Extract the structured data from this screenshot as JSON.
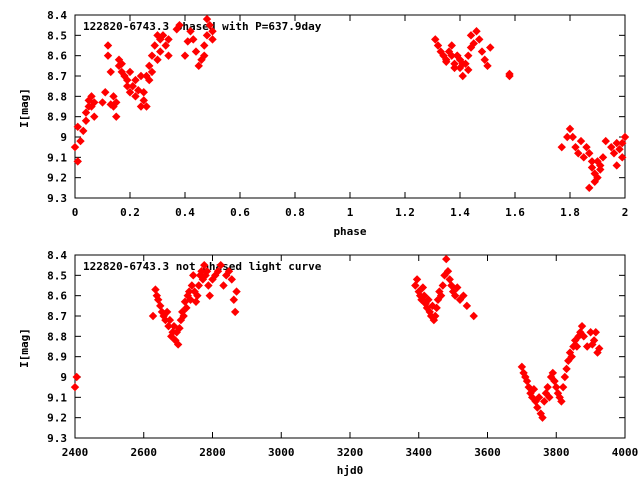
{
  "chart_data": [
    {
      "type": "scatter",
      "title": "122820-6743.3 phased with P=637.9day",
      "xlabel": "phase",
      "ylabel": "I[mag]",
      "xlim": [
        0,
        2
      ],
      "ylim": [
        9.3,
        8.4
      ],
      "y_inverted": true,
      "x_ticks": [
        "0",
        "0.2",
        "0.4",
        "0.6",
        "0.8",
        "1",
        "1.2",
        "1.4",
        "1.6",
        "1.8",
        "2"
      ],
      "y_ticks": [
        "8.4",
        "8.5",
        "8.6",
        "8.7",
        "8.8",
        "8.9",
        "9",
        "9.1",
        "9.2",
        "9.3"
      ],
      "grid": false,
      "marker_color": "#ff0000",
      "marker": "diamond",
      "series": [
        {
          "x": [
            0.0,
            0.01,
            0.02,
            0.01,
            0.03,
            0.04,
            0.04,
            0.05,
            0.05,
            0.06,
            0.06,
            0.07,
            0.07,
            0.1,
            0.11,
            0.12,
            0.12,
            0.13,
            0.13,
            0.14,
            0.14,
            0.15,
            0.15,
            0.16,
            0.16,
            0.17,
            0.17,
            0.18,
            0.19,
            0.19,
            0.2,
            0.2,
            0.21,
            0.22,
            0.22,
            0.23,
            0.24,
            0.24,
            0.25,
            0.25,
            0.26,
            0.26,
            0.27,
            0.27,
            0.28,
            0.28,
            0.29,
            0.3,
            0.3,
            0.31,
            0.31,
            0.32,
            0.33,
            0.34,
            0.34,
            0.37,
            0.38,
            0.4,
            0.41,
            0.42,
            0.43,
            0.44,
            0.45,
            0.46,
            0.47,
            0.48,
            0.49,
            0.5,
            0.48,
            0.5,
            0.47,
            1.31,
            1.32,
            1.33,
            1.34,
            1.35,
            1.36,
            1.37,
            1.38,
            1.38,
            1.39,
            1.4,
            1.4,
            1.41,
            1.42,
            1.43,
            1.44,
            1.44,
            1.45,
            1.46,
            1.47,
            1.48,
            1.49,
            1.5,
            1.51,
            1.35,
            1.37,
            1.39,
            1.41,
            1.43,
            1.58,
            1.58,
            1.77,
            1.79,
            1.8,
            1.81,
            1.82,
            1.83,
            1.84,
            1.85,
            1.86,
            1.87,
            1.88,
            1.88,
            1.89,
            1.9,
            1.9,
            1.91,
            1.92,
            1.93,
            1.95,
            1.96,
            1.97,
            1.98,
            1.99,
            2.0,
            1.87,
            1.89,
            1.91,
            1.97,
            1.99
          ],
          "y": [
            9.05,
            9.12,
            9.02,
            8.95,
            8.97,
            8.92,
            8.88,
            8.85,
            8.82,
            8.8,
            8.85,
            8.9,
            8.83,
            8.83,
            8.78,
            8.6,
            8.55,
            8.68,
            8.84,
            8.8,
            8.85,
            8.83,
            8.9,
            8.62,
            8.65,
            8.68,
            8.64,
            8.7,
            8.75,
            8.72,
            8.68,
            8.78,
            8.75,
            8.8,
            8.72,
            8.77,
            8.7,
            8.85,
            8.78,
            8.82,
            8.85,
            8.7,
            8.65,
            8.72,
            8.6,
            8.68,
            8.55,
            8.62,
            8.5,
            8.58,
            8.52,
            8.5,
            8.55,
            8.52,
            8.6,
            8.47,
            8.45,
            8.6,
            8.53,
            8.48,
            8.52,
            8.58,
            8.65,
            8.62,
            8.55,
            8.5,
            8.45,
            8.48,
            8.42,
            8.52,
            8.6,
            8.52,
            8.55,
            8.58,
            8.6,
            8.62,
            8.58,
            8.6,
            8.64,
            8.66,
            8.6,
            8.62,
            8.66,
            8.7,
            8.64,
            8.6,
            8.56,
            8.5,
            8.54,
            8.48,
            8.52,
            8.58,
            8.62,
            8.65,
            8.56,
            8.63,
            8.55,
            8.6,
            8.64,
            8.67,
            8.7,
            8.69,
            9.05,
            9.0,
            8.96,
            9.0,
            9.05,
            9.08,
            9.02,
            9.1,
            9.05,
            9.08,
            9.12,
            9.15,
            9.18,
            9.12,
            9.2,
            9.14,
            9.1,
            9.02,
            9.05,
            9.08,
            9.03,
            9.06,
            9.1,
            9.0,
            9.25,
            9.22,
            9.16,
            9.14,
            9.03
          ]
        }
      ]
    },
    {
      "type": "scatter",
      "title": "122820-6743.3 not phased light curve",
      "xlabel": "hjd0",
      "ylabel": "I[mag]",
      "xlim": [
        2400,
        4000
      ],
      "ylim": [
        9.3,
        8.4
      ],
      "y_inverted": true,
      "x_ticks": [
        "2400",
        "2600",
        "2800",
        "3000",
        "3200",
        "3400",
        "3600",
        "3800",
        "4000"
      ],
      "y_ticks": [
        "8.4",
        "8.5",
        "8.6",
        "8.7",
        "8.8",
        "8.9",
        "9",
        "9.1",
        "9.2",
        "9.3"
      ],
      "grid": false,
      "marker_color": "#ff0000",
      "marker": "diamond",
      "series": [
        {
          "x": [
            2400,
            2405,
            2627,
            2634,
            2638,
            2642,
            2648,
            2653,
            2658,
            2663,
            2668,
            2672,
            2676,
            2680,
            2684,
            2688,
            2692,
            2696,
            2700,
            2704,
            2708,
            2712,
            2716,
            2720,
            2724,
            2728,
            2732,
            2736,
            2740,
            2744,
            2748,
            2752,
            2756,
            2760,
            2764,
            2768,
            2772,
            2776,
            2780,
            2784,
            2788,
            2792,
            2800,
            2808,
            2816,
            2824,
            2832,
            2840,
            2848,
            2856,
            2862,
            2866,
            2870,
            3390,
            3395,
            3400,
            3404,
            3408,
            3412,
            3416,
            3420,
            3424,
            3428,
            3432,
            3436,
            3440,
            3444,
            3448,
            3452,
            3456,
            3460,
            3465,
            3470,
            3475,
            3480,
            3485,
            3490,
            3495,
            3500,
            3506,
            3512,
            3520,
            3530,
            3540,
            3560,
            3700,
            3705,
            3710,
            3715,
            3720,
            3725,
            3730,
            3735,
            3740,
            3745,
            3750,
            3755,
            3760,
            3765,
            3770,
            3775,
            3780,
            3785,
            3790,
            3795,
            3800,
            3805,
            3810,
            3815,
            3820,
            3825,
            3830,
            3835,
            3840,
            3845,
            3850,
            3855,
            3860,
            3865,
            3870,
            3875,
            3880,
            3890,
            3900,
            3905,
            3910,
            3915,
            3920,
            3925
          ],
          "y": [
            9.05,
            9.0,
            8.7,
            8.57,
            8.6,
            8.62,
            8.65,
            8.68,
            8.7,
            8.72,
            8.68,
            8.75,
            8.72,
            8.8,
            8.78,
            8.75,
            8.82,
            8.78,
            8.84,
            8.76,
            8.72,
            8.68,
            8.7,
            8.63,
            8.66,
            8.6,
            8.58,
            8.62,
            8.55,
            8.5,
            8.58,
            8.63,
            8.6,
            8.55,
            8.5,
            8.48,
            8.52,
            8.45,
            8.5,
            8.48,
            8.55,
            8.6,
            8.52,
            8.5,
            8.48,
            8.45,
            8.55,
            8.5,
            8.48,
            8.52,
            8.62,
            8.68,
            8.58,
            8.55,
            8.52,
            8.58,
            8.6,
            8.62,
            8.56,
            8.6,
            8.64,
            8.66,
            8.62,
            8.68,
            8.7,
            8.65,
            8.72,
            8.7,
            8.66,
            8.62,
            8.58,
            8.6,
            8.55,
            8.5,
            8.42,
            8.48,
            8.52,
            8.55,
            8.58,
            8.6,
            8.56,
            8.62,
            8.6,
            8.65,
            8.7,
            8.95,
            8.98,
            9.0,
            9.02,
            9.05,
            9.08,
            9.1,
            9.06,
            9.12,
            9.15,
            9.1,
            9.18,
            9.2,
            9.12,
            9.08,
            9.05,
            9.1,
            9.0,
            8.98,
            9.02,
            9.05,
            9.08,
            9.1,
            9.12,
            9.05,
            9.0,
            8.96,
            8.92,
            8.88,
            8.9,
            8.85,
            8.82,
            8.85,
            8.8,
            8.78,
            8.75,
            8.8,
            8.85,
            8.78,
            8.84,
            8.82,
            8.78,
            8.88,
            8.86
          ]
        }
      ]
    }
  ]
}
